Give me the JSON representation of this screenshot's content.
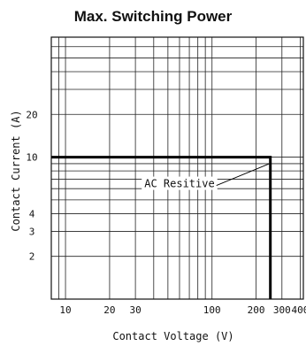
{
  "chart_data": {
    "type": "line",
    "title": "Max. Switching Power",
    "xlabel": "Contact Voltage (V)",
    "ylabel": "Contact Current (A)",
    "x_scale": "log",
    "y_scale": "log",
    "xlim": [
      8,
      420
    ],
    "ylim": [
      1,
      70
    ],
    "x_ticks": [
      10,
      20,
      30,
      100,
      200,
      300,
      400
    ],
    "y_ticks": [
      2,
      3,
      4,
      10,
      20
    ],
    "grid": true,
    "series": [
      {
        "name": "AC Resitive",
        "points": [
          [
            8,
            10
          ],
          [
            250,
            10
          ],
          [
            250,
            1
          ]
        ]
      }
    ],
    "annotations": [
      {
        "text": "AC Resitive",
        "x": 60,
        "y": 6.5,
        "points_to": [
          250,
          9
        ]
      }
    ]
  }
}
